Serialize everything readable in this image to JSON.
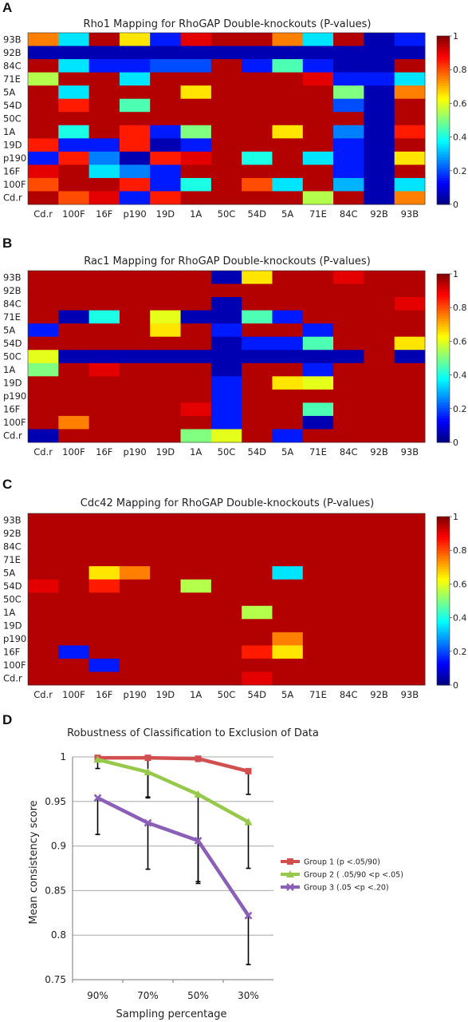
{
  "panels": {
    "a": {
      "label": "A"
    },
    "b": {
      "label": "B"
    },
    "c": {
      "label": "C"
    },
    "d": {
      "label": "D"
    }
  },
  "chart_data": [
    {
      "type": "heatmap",
      "title": "Rho1 Mapping for RhoGAP Double-knockouts (P-values)",
      "rows": [
        "93B",
        "92B",
        "84C",
        "71E",
        "5A",
        "54D",
        "50C",
        "1A",
        "19D",
        "p190",
        "16F",
        "100F",
        "Cd.r"
      ],
      "cols": [
        "Cd.r",
        "100F",
        "16F",
        "p190",
        "19D",
        "1A",
        "50C",
        "54D",
        "5A",
        "71E",
        "84C",
        "92B",
        "93B"
      ],
      "values": [
        [
          0.75,
          0.35,
          0.95,
          0.65,
          0.15,
          0.9,
          0.95,
          0.95,
          0.75,
          0.35,
          0.95,
          0.05,
          0.15
        ],
        [
          0.05,
          0.05,
          0.05,
          0.05,
          0.05,
          0.05,
          0.05,
          0.05,
          0.05,
          0.05,
          0.05,
          0.05,
          0.05
        ],
        [
          0.95,
          0.35,
          0.15,
          0.15,
          0.2,
          0.2,
          0.95,
          0.15,
          0.45,
          0.15,
          0.05,
          0.05,
          0.95
        ],
        [
          0.55,
          0.95,
          0.95,
          0.35,
          0.95,
          0.95,
          0.95,
          0.95,
          0.95,
          0.9,
          0.15,
          0.15,
          0.35
        ],
        [
          0.95,
          0.35,
          0.95,
          0.95,
          0.95,
          0.65,
          0.95,
          0.95,
          0.95,
          0.95,
          0.5,
          0.05,
          0.75
        ],
        [
          0.95,
          0.85,
          0.95,
          0.45,
          0.95,
          0.95,
          0.95,
          0.95,
          0.95,
          0.95,
          0.2,
          0.05,
          0.95
        ],
        [
          0.95,
          0.95,
          0.95,
          0.95,
          0.95,
          0.95,
          0.95,
          0.95,
          0.95,
          0.95,
          0.95,
          0.05,
          0.95
        ],
        [
          0.95,
          0.4,
          0.95,
          0.85,
          0.15,
          0.5,
          0.95,
          0.95,
          0.65,
          0.95,
          0.25,
          0.05,
          0.85
        ],
        [
          0.85,
          0.15,
          0.15,
          0.85,
          0.05,
          0.15,
          0.95,
          0.95,
          0.95,
          0.95,
          0.15,
          0.05,
          0.95
        ],
        [
          0.15,
          0.85,
          0.25,
          0.05,
          0.85,
          0.9,
          0.95,
          0.4,
          0.95,
          0.35,
          0.15,
          0.05,
          0.65
        ],
        [
          0.9,
          0.95,
          0.35,
          0.25,
          0.15,
          0.95,
          0.95,
          0.95,
          0.95,
          0.95,
          0.15,
          0.05,
          0.95
        ],
        [
          0.8,
          0.95,
          0.95,
          0.85,
          0.15,
          0.4,
          0.95,
          0.8,
          0.35,
          0.95,
          0.3,
          0.05,
          0.35
        ],
        [
          0.95,
          0.8,
          0.9,
          0.15,
          0.85,
          0.95,
          0.95,
          0.95,
          0.95,
          0.55,
          0.95,
          0.05,
          0.75
        ]
      ],
      "zlim": [
        0,
        1
      ],
      "colorbar_ticks": [
        "0",
        "0.2",
        "0.4",
        "0.6",
        "0.8",
        "1"
      ]
    },
    {
      "type": "heatmap",
      "title": "Rac1 Mapping for RhoGAP Double-knockouts (P-values)",
      "rows": [
        "93B",
        "92B",
        "84C",
        "71E",
        "5A",
        "54D",
        "50C",
        "1A",
        "19D",
        "p190",
        "16F",
        "100F",
        "Cd.r"
      ],
      "cols": [
        "Cd.r",
        "100F",
        "16F",
        "p190",
        "19D",
        "1A",
        "50C",
        "54D",
        "5A",
        "71E",
        "84C",
        "92B",
        "93B"
      ],
      "values": [
        [
          0.95,
          0.95,
          0.95,
          0.95,
          0.95,
          0.95,
          0.05,
          0.65,
          0.95,
          0.95,
          0.9,
          0.95,
          0.95
        ],
        [
          0.95,
          0.95,
          0.95,
          0.95,
          0.95,
          0.95,
          0.95,
          0.95,
          0.95,
          0.95,
          0.95,
          0.95,
          0.95
        ],
        [
          0.95,
          0.95,
          0.95,
          0.95,
          0.95,
          0.95,
          0.05,
          0.95,
          0.95,
          0.95,
          0.95,
          0.95,
          0.9
        ],
        [
          0.95,
          0.05,
          0.4,
          0.95,
          0.6,
          0.05,
          0.05,
          0.45,
          0.15,
          0.95,
          0.95,
          0.95,
          0.95
        ],
        [
          0.15,
          0.95,
          0.95,
          0.95,
          0.65,
          0.95,
          0.15,
          0.95,
          0.95,
          0.15,
          0.95,
          0.95,
          0.95
        ],
        [
          0.95,
          0.95,
          0.95,
          0.95,
          0.95,
          0.95,
          0.05,
          0.15,
          0.15,
          0.45,
          0.95,
          0.95,
          0.65
        ],
        [
          0.6,
          0.05,
          0.05,
          0.05,
          0.05,
          0.05,
          0.05,
          0.05,
          0.05,
          0.05,
          0.05,
          0.95,
          0.05
        ],
        [
          0.5,
          0.95,
          0.9,
          0.95,
          0.95,
          0.95,
          0.05,
          0.95,
          0.95,
          0.15,
          0.95,
          0.95,
          0.95
        ],
        [
          0.95,
          0.95,
          0.95,
          0.95,
          0.95,
          0.95,
          0.15,
          0.95,
          0.65,
          0.6,
          0.95,
          0.95,
          0.95
        ],
        [
          0.95,
          0.95,
          0.95,
          0.95,
          0.95,
          0.95,
          0.15,
          0.95,
          0.95,
          0.95,
          0.95,
          0.95,
          0.95
        ],
        [
          0.95,
          0.95,
          0.95,
          0.95,
          0.95,
          0.9,
          0.15,
          0.95,
          0.95,
          0.45,
          0.95,
          0.95,
          0.95
        ],
        [
          0.95,
          0.75,
          0.95,
          0.95,
          0.95,
          0.95,
          0.15,
          0.95,
          0.95,
          0.05,
          0.95,
          0.95,
          0.95
        ],
        [
          0.05,
          0.95,
          0.95,
          0.95,
          0.95,
          0.5,
          0.6,
          0.95,
          0.15,
          0.95,
          0.95,
          0.95,
          0.95
        ]
      ],
      "zlim": [
        0,
        1
      ],
      "colorbar_ticks": [
        "0",
        "0.2",
        "0.4",
        "0.6",
        "0.8",
        "1"
      ]
    },
    {
      "type": "heatmap",
      "title": "Cdc42 Mapping for RhoGAP Double-knockouts (P-values)",
      "rows": [
        "93B",
        "92B",
        "84C",
        "71E",
        "5A",
        "54D",
        "50C",
        "1A",
        "19D",
        "p190",
        "16F",
        "100F",
        "Cd.r"
      ],
      "cols": [
        "Cd.r",
        "100F",
        "16F",
        "p190",
        "19D",
        "1A",
        "50C",
        "54D",
        "5A",
        "71E",
        "84C",
        "92B",
        "93B"
      ],
      "values": [
        [
          0.95,
          0.95,
          0.95,
          0.95,
          0.95,
          0.95,
          0.95,
          0.95,
          0.95,
          0.95,
          0.95,
          0.95,
          0.95
        ],
        [
          0.95,
          0.95,
          0.95,
          0.95,
          0.95,
          0.95,
          0.95,
          0.95,
          0.95,
          0.95,
          0.95,
          0.95,
          0.95
        ],
        [
          0.95,
          0.95,
          0.95,
          0.95,
          0.95,
          0.95,
          0.95,
          0.95,
          0.95,
          0.95,
          0.95,
          0.95,
          0.95
        ],
        [
          0.95,
          0.95,
          0.95,
          0.95,
          0.95,
          0.95,
          0.95,
          0.95,
          0.95,
          0.95,
          0.95,
          0.95,
          0.95
        ],
        [
          0.95,
          0.95,
          0.65,
          0.75,
          0.95,
          0.95,
          0.95,
          0.95,
          0.35,
          0.95,
          0.95,
          0.95,
          0.95
        ],
        [
          0.9,
          0.95,
          0.85,
          0.95,
          0.95,
          0.55,
          0.95,
          0.95,
          0.95,
          0.95,
          0.95,
          0.95,
          0.95
        ],
        [
          0.95,
          0.95,
          0.95,
          0.95,
          0.95,
          0.95,
          0.95,
          0.95,
          0.95,
          0.95,
          0.95,
          0.95,
          0.95
        ],
        [
          0.95,
          0.95,
          0.95,
          0.95,
          0.95,
          0.95,
          0.95,
          0.55,
          0.95,
          0.95,
          0.95,
          0.95,
          0.95
        ],
        [
          0.95,
          0.95,
          0.95,
          0.95,
          0.95,
          0.95,
          0.95,
          0.95,
          0.95,
          0.95,
          0.95,
          0.95,
          0.95
        ],
        [
          0.95,
          0.95,
          0.95,
          0.95,
          0.95,
          0.95,
          0.95,
          0.95,
          0.75,
          0.95,
          0.95,
          0.95,
          0.95
        ],
        [
          0.95,
          0.15,
          0.95,
          0.95,
          0.95,
          0.95,
          0.95,
          0.85,
          0.65,
          0.95,
          0.95,
          0.95,
          0.95
        ],
        [
          0.95,
          0.95,
          0.15,
          0.95,
          0.95,
          0.95,
          0.95,
          0.95,
          0.95,
          0.95,
          0.95,
          0.95,
          0.95
        ],
        [
          0.95,
          0.95,
          0.95,
          0.95,
          0.95,
          0.95,
          0.95,
          0.9,
          0.95,
          0.95,
          0.95,
          0.95,
          0.95
        ]
      ],
      "zlim": [
        0,
        1
      ],
      "colorbar_ticks": [
        "0",
        "0.2",
        "0.4",
        "0.6",
        "0.8",
        "1"
      ]
    },
    {
      "type": "line",
      "title": "Robustness of Classification to Exclusion of Data",
      "xlabel": "Sampling percentage",
      "ylabel": "Mean consistency score",
      "categories": [
        "90%",
        "70%",
        "50%",
        "30%"
      ],
      "ylim": [
        0.75,
        1.0
      ],
      "yticks": [
        "0.75",
        "0.8",
        "0.85",
        "0.9",
        "0.95",
        "1"
      ],
      "grid": true,
      "legend_position": "right",
      "series": [
        {
          "name": "Group 1 (p <.05/90)",
          "values": [
            0.999,
            0.999,
            0.998,
            0.984
          ],
          "err_low": [
            0.012,
            0.045,
            0.003,
            0.026
          ],
          "color": "#d24f4f",
          "marker": "square"
        },
        {
          "name": "Group 2 ( .05/90 <p <.05)",
          "values": [
            0.997,
            0.983,
            0.958,
            0.927
          ],
          "err_low": [
            0.0,
            0.028,
            0.1,
            0.052
          ],
          "color": "#96c94a",
          "marker": "triangle"
        },
        {
          "name": "Group 3 (.05 <p <.20)",
          "values": [
            0.954,
            0.926,
            0.906,
            0.822
          ],
          "err_low": [
            0.041,
            0.052,
            0.046,
            0.055
          ],
          "color": "#8b5fb8",
          "marker": "x"
        }
      ]
    }
  ]
}
